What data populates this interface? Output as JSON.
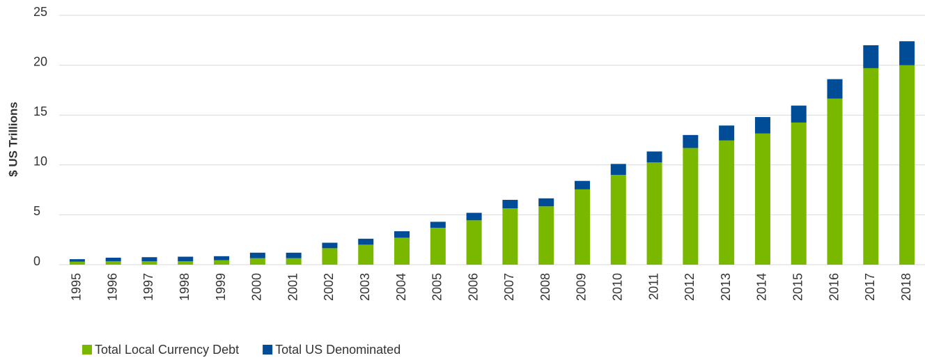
{
  "chart_data": {
    "type": "stacked_bar",
    "y_label": "$ US Trillions",
    "categories": [
      "1995",
      "1996",
      "1997",
      "1998",
      "1999",
      "2000",
      "2001",
      "2002",
      "2003",
      "2004",
      "2005",
      "2006",
      "2007",
      "2008",
      "2009",
      "2010",
      "2011",
      "2012",
      "2013",
      "2014",
      "2015",
      "2016",
      "2017",
      "2018"
    ],
    "series": [
      {
        "name": "Total Local Currency Debt",
        "color": "#7ab800",
        "values": [
          0.3,
          0.35,
          0.35,
          0.35,
          0.45,
          0.65,
          0.65,
          1.65,
          2.0,
          2.7,
          3.7,
          4.45,
          5.65,
          5.85,
          7.55,
          9.0,
          10.25,
          11.7,
          12.45,
          13.15,
          14.25,
          16.65,
          19.7,
          20.0
        ]
      },
      {
        "name": "Total US Denominated",
        "color": "#004c97",
        "values": [
          0.25,
          0.35,
          0.4,
          0.45,
          0.4,
          0.55,
          0.55,
          0.55,
          0.6,
          0.65,
          0.6,
          0.75,
          0.85,
          0.8,
          0.85,
          1.1,
          1.1,
          1.3,
          1.5,
          1.65,
          1.7,
          1.95,
          2.3,
          2.4
        ]
      }
    ],
    "ylim": [
      0,
      25
    ],
    "yticks": [
      0,
      5,
      10,
      15,
      20,
      25
    ],
    "grid": true,
    "legend": "bottom-left"
  }
}
